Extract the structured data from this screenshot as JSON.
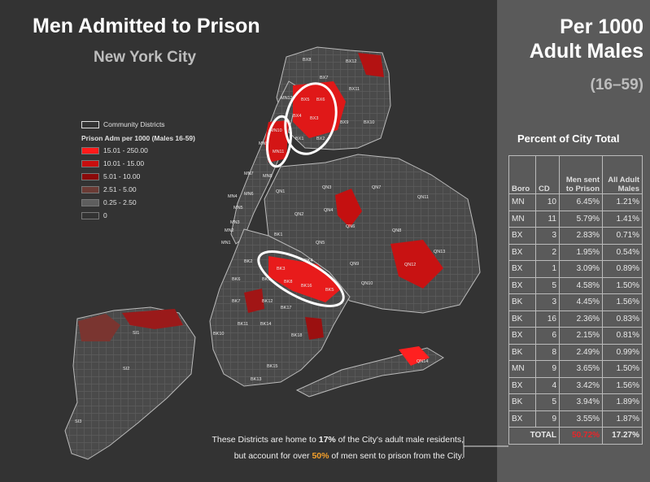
{
  "title": "Men Admitted to Prison",
  "subtitle": "New York City",
  "right_title_line1": "Per 1000",
  "right_title_line2": "Adult Males",
  "right_subtitle": "(16–59)",
  "legend": {
    "districts_label": "Community Districts",
    "title": "Prison Adm per 1000 (Males 16-59)",
    "classes": [
      {
        "label": "15.01 - 250.00",
        "color": "#ff1a1a"
      },
      {
        "label": "10.01 - 15.00",
        "color": "#c80e0e"
      },
      {
        "label": "5.01 - 10.00",
        "color": "#8b0a0a"
      },
      {
        "label": "2.51 - 5.00",
        "color": "#6b3b35"
      },
      {
        "label": "0.25 - 2.50",
        "color": "#5e5e5e"
      },
      {
        "label": "0",
        "color": "#333333"
      }
    ]
  },
  "table": {
    "caption": "Percent of City Total",
    "headers": {
      "boro": "Boro",
      "cd": "CD",
      "men": "Men sent to Prison",
      "all": "All Adult Males"
    },
    "rows": [
      {
        "boro": "MN",
        "cd": "10",
        "men": "6.45%",
        "all": "1.21%"
      },
      {
        "boro": "MN",
        "cd": "11",
        "men": "5.79%",
        "all": "1.41%"
      },
      {
        "boro": "BX",
        "cd": "3",
        "men": "2.83%",
        "all": "0.71%"
      },
      {
        "boro": "BX",
        "cd": "2",
        "men": "1.95%",
        "all": "0.54%"
      },
      {
        "boro": "BX",
        "cd": "1",
        "men": "3.09%",
        "all": "0.89%"
      },
      {
        "boro": "BX",
        "cd": "5",
        "men": "4.58%",
        "all": "1.50%"
      },
      {
        "boro": "BK",
        "cd": "3",
        "men": "4.45%",
        "all": "1.56%"
      },
      {
        "boro": "BK",
        "cd": "16",
        "men": "2.36%",
        "all": "0.83%"
      },
      {
        "boro": "BX",
        "cd": "6",
        "men": "2.15%",
        "all": "0.81%"
      },
      {
        "boro": "BK",
        "cd": "8",
        "men": "2.49%",
        "all": "0.99%"
      },
      {
        "boro": "MN",
        "cd": "9",
        "men": "3.65%",
        "all": "1.50%"
      },
      {
        "boro": "BX",
        "cd": "4",
        "men": "3.42%",
        "all": "1.56%"
      },
      {
        "boro": "BK",
        "cd": "5",
        "men": "3.94%",
        "all": "1.89%"
      },
      {
        "boro": "BX",
        "cd": "9",
        "men": "3.55%",
        "all": "1.87%"
      }
    ],
    "total": {
      "label": "TOTAL",
      "men": "50.72%",
      "all": "17.27%"
    },
    "total_men_color": "#e8262a"
  },
  "note": {
    "line1_a": "These Districts are home to ",
    "line1_b": "17%",
    "line1_c": " of the City's adult male residents,",
    "line2_a": "but account for over ",
    "line2_b": "50%",
    "line2_c": " of men sent to prison from the City."
  },
  "district_labels": [
    "BX8",
    "BX12",
    "BX7",
    "BX11",
    "BX5",
    "BX6",
    "BX10",
    "BX4",
    "BX3",
    "BX9",
    "BX2",
    "BX1",
    "MN12",
    "MN10",
    "MN11",
    "MN9",
    "MN8",
    "MN7",
    "MN6",
    "MN5",
    "MN4",
    "MN3",
    "MN2",
    "MN1",
    "QN1",
    "QN2",
    "QN3",
    "QN4",
    "QN5",
    "QN6",
    "QN7",
    "QN8",
    "QN9",
    "QN10",
    "QN11",
    "QN12",
    "QN13",
    "QN14",
    "BK1",
    "BK2",
    "BK3",
    "BK4",
    "BK5",
    "BK6",
    "BK7",
    "BK8",
    "BK9",
    "BK10",
    "BK11",
    "BK12",
    "BK13",
    "BK14",
    "BK15",
    "BK16",
    "BK17",
    "BK18",
    "SI1",
    "SI2",
    "SI3"
  ]
}
